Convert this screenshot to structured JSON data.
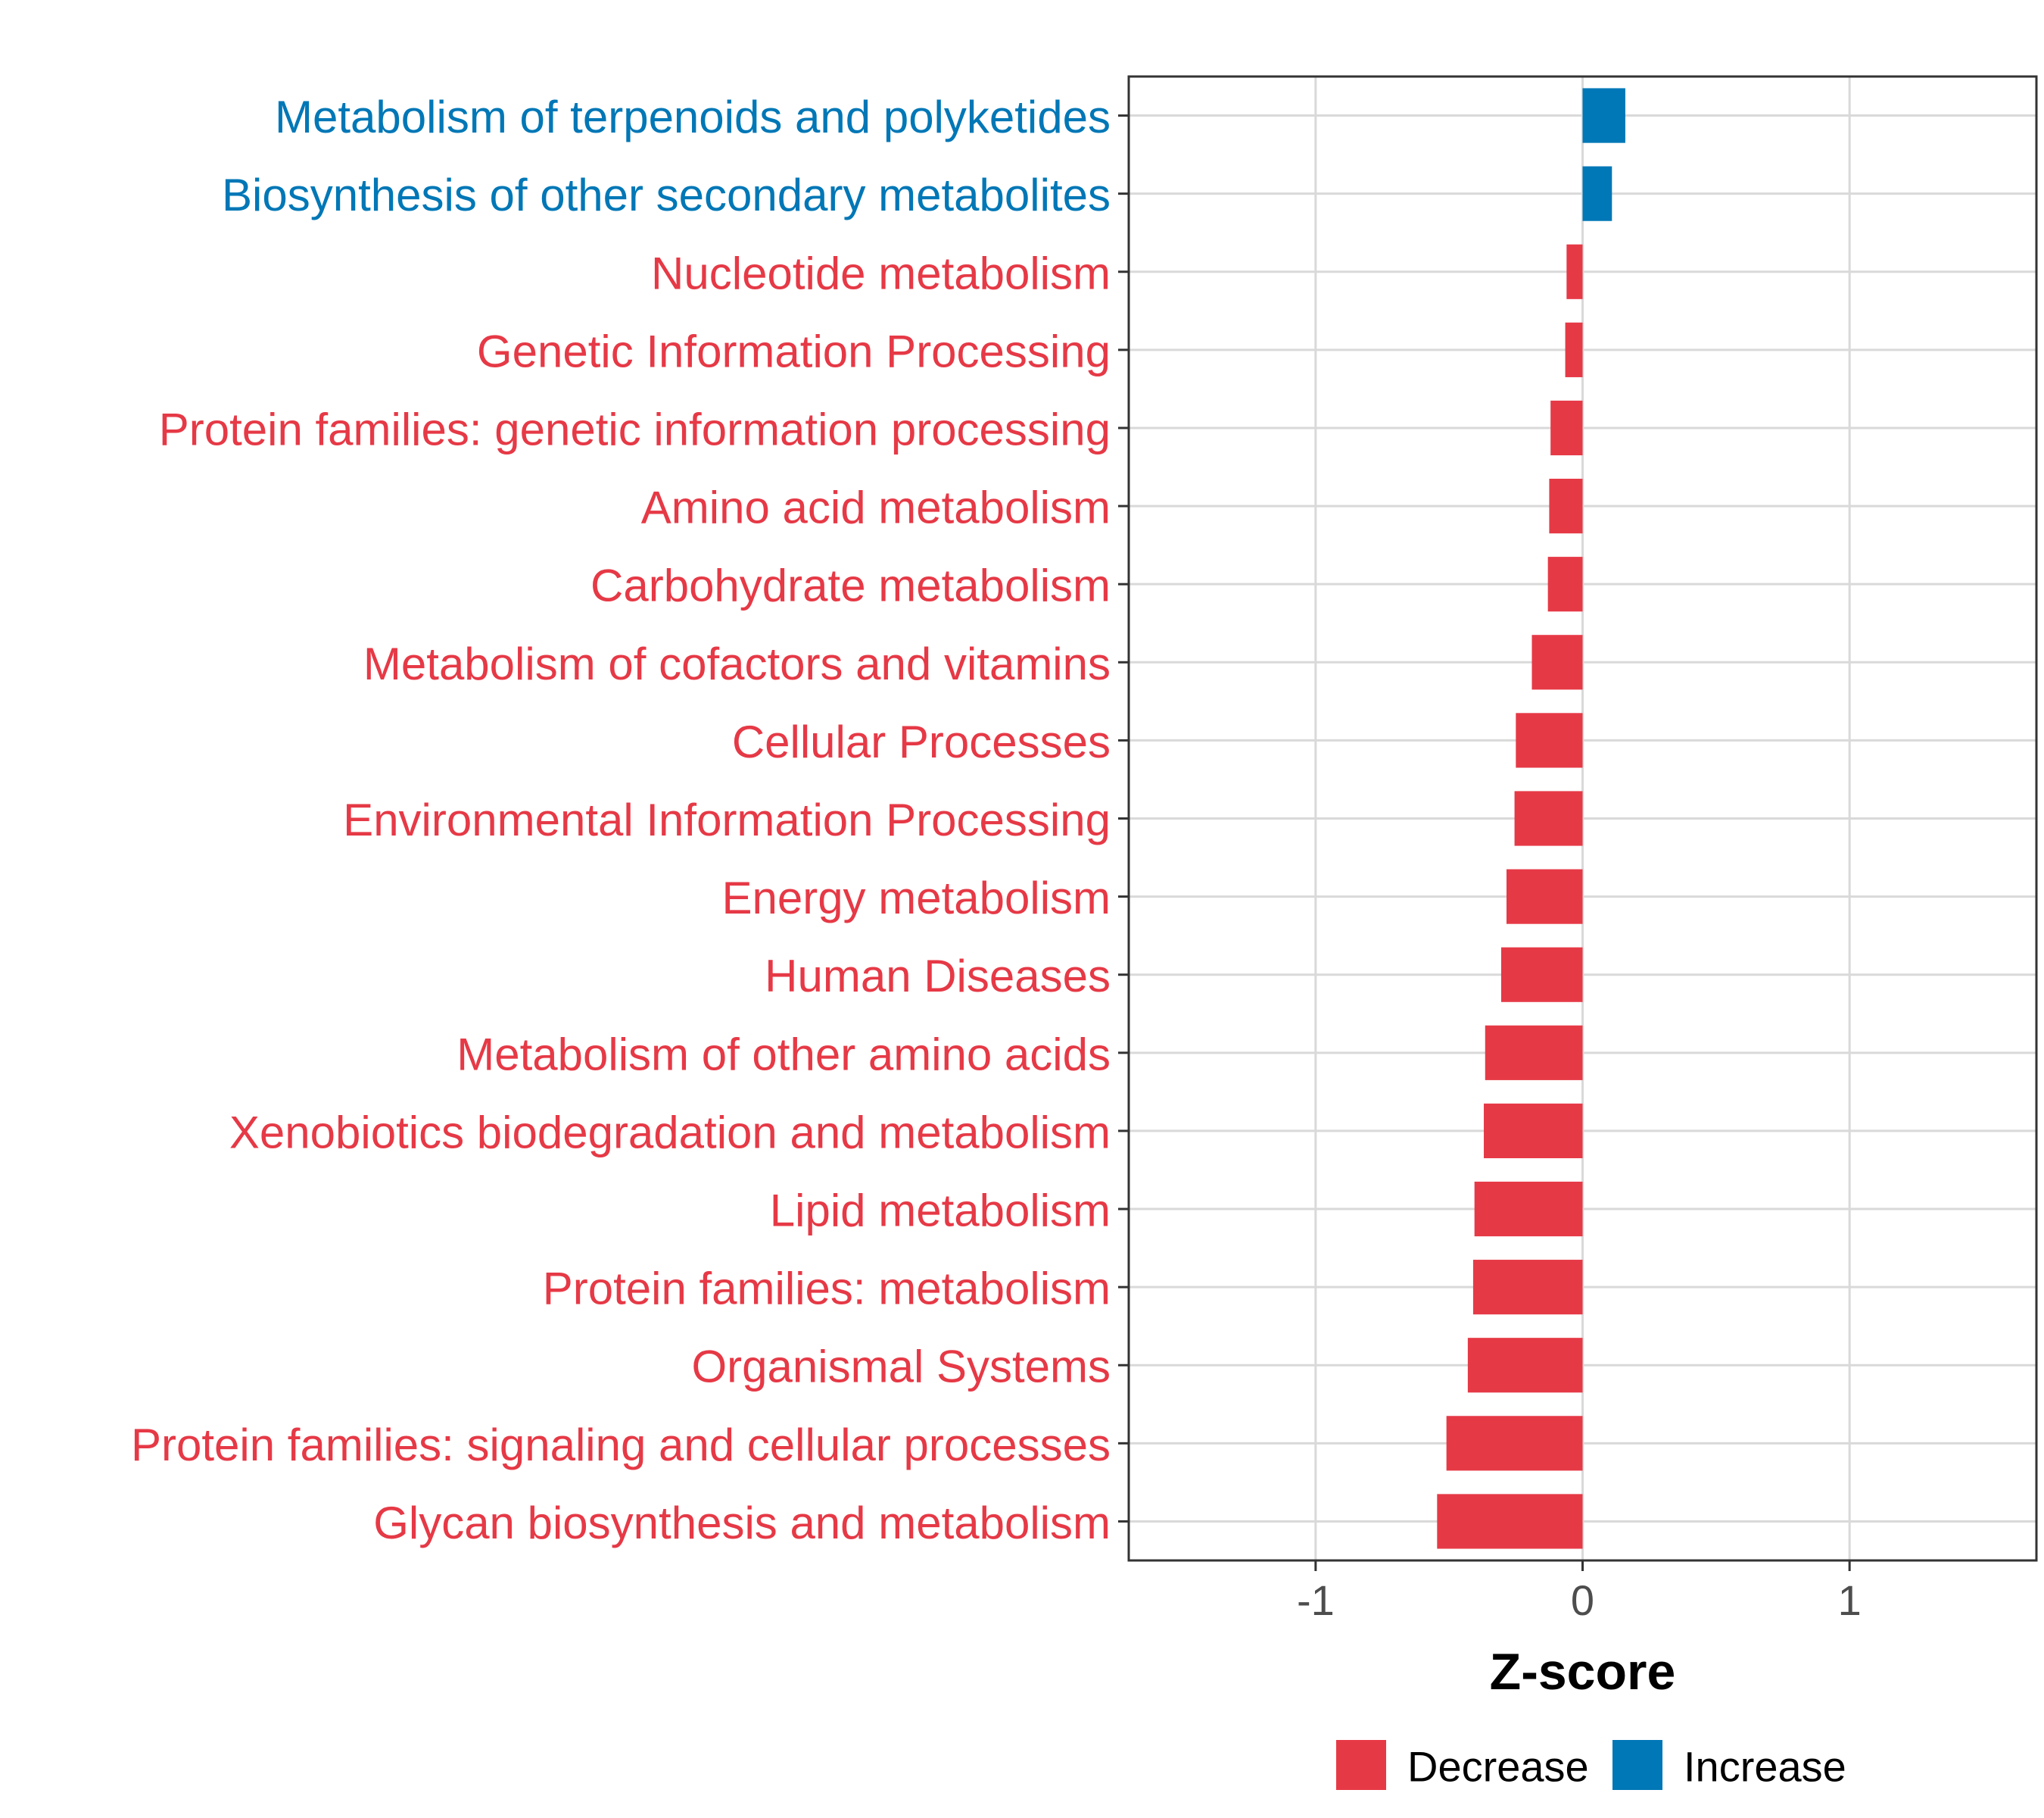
{
  "chart_data": {
    "type": "bar",
    "orientation": "horizontal",
    "title": "",
    "xlabel": "Z-score",
    "ylabel": "",
    "xlim": [
      -1.7,
      1.7
    ],
    "xticks": [
      -1,
      0,
      1
    ],
    "xtick_labels": [
      "-1",
      "0",
      "1"
    ],
    "grid": true,
    "legend_position": "bottom",
    "categories": [
      "Metabolism of terpenoids and polyketides",
      "Biosynthesis of other secondary metabolites",
      "Nucleotide metabolism",
      "Genetic Information Processing",
      "Protein families: genetic information processing",
      "Amino acid metabolism",
      "Carbohydrate metabolism",
      "Metabolism of cofactors and vitamins",
      "Cellular Processes",
      "Environmental Information Processing",
      "Energy metabolism",
      "Human Diseases",
      "Metabolism of other amino acids",
      "Xenobiotics biodegradation and metabolism",
      "Lipid metabolism",
      "Protein families: metabolism",
      "Organismal Systems",
      "Protein families: signaling and cellular processes",
      "Glycan biosynthesis and metabolism"
    ],
    "values": [
      0.16,
      0.11,
      -0.06,
      -0.065,
      -0.12,
      -0.125,
      -0.13,
      -0.19,
      -0.25,
      -0.255,
      -0.285,
      -0.305,
      -0.365,
      -0.37,
      -0.405,
      -0.41,
      -0.43,
      -0.51,
      -0.545
    ],
    "groups": [
      "Increase",
      "Increase",
      "Decrease",
      "Decrease",
      "Decrease",
      "Decrease",
      "Decrease",
      "Decrease",
      "Decrease",
      "Decrease",
      "Decrease",
      "Decrease",
      "Decrease",
      "Decrease",
      "Decrease",
      "Decrease",
      "Decrease",
      "Decrease",
      "Decrease"
    ],
    "legend": [
      {
        "name": "Decrease",
        "color": "#e63946"
      },
      {
        "name": "Increase",
        "color": "#0077b6"
      }
    ],
    "colors": {
      "Decrease": "#e63946",
      "Increase": "#0077b6"
    }
  }
}
